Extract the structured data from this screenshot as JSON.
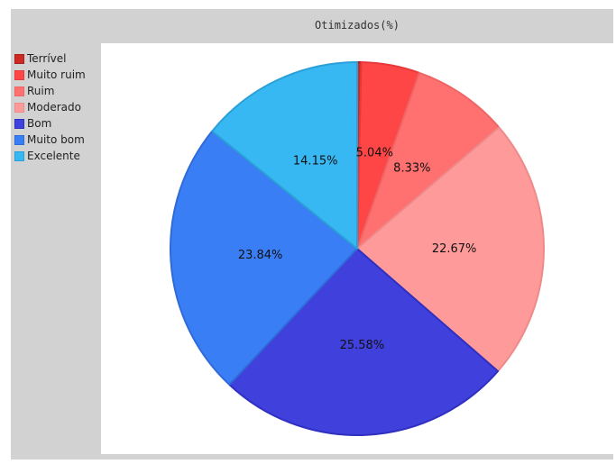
{
  "chart_data": {
    "type": "pie",
    "title": "Otimizados(%)",
    "legend_position": "top-left",
    "categories": [
      "Terrível",
      "Muito ruim",
      "Ruim",
      "Moderado",
      "Bom",
      "Muito bom",
      "Excelente"
    ],
    "values": [
      0.35,
      5.04,
      8.33,
      22.67,
      25.58,
      23.84,
      14.15
    ],
    "labels": [
      "",
      "5.04%",
      "8.33%",
      "22.67%",
      "25.58%",
      "23.84%",
      "14.15%"
    ],
    "colors": [
      "#cc2a22",
      "#ff4646",
      "#ff7070",
      "#ff9a9a",
      "#4040dd",
      "#3a7ef5",
      "#38b8f2"
    ],
    "stroke_colors": [
      "#aa1f18",
      "#e63a3a",
      "#ee6565",
      "#ee8a8a",
      "#2f2fc0",
      "#2f6ad6",
      "#2a9fd8"
    ],
    "start_angle": "top",
    "direction": "clockwise"
  }
}
